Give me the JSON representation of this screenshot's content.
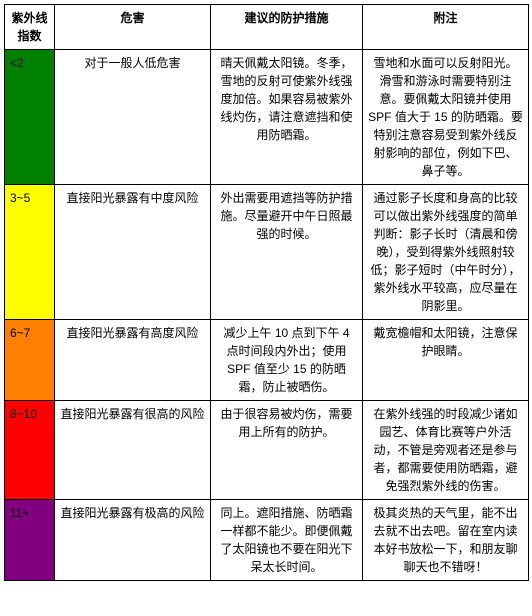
{
  "headers": {
    "uv_index": "紫外线指数",
    "hazard": "危害",
    "protection": "建议的防护措施",
    "note": "附注"
  },
  "rows": [
    {
      "index_label": "<2",
      "bg_color": "#008000",
      "hazard": "对于一般人低危害",
      "protection": "晴天佩戴太阳镜。冬季，雪地的反射可使紫外线强度加倍。如果容易被紫外线灼伤，请注意遮挡和使用防晒霜。",
      "note": "雪地和水面可以反射阳光。滑雪和游泳时需要特别注意。要佩戴太阳镜并使用 SPF 值大于 15 的防晒霜。要特别注意容易受到紫外线反射影响的部位，例如下巴、鼻子等。"
    },
    {
      "index_label": "3~5",
      "bg_color": "#ffff00",
      "hazard": "直接阳光暴露有中度风险",
      "protection": "外出需要用遮挡等防护措施。尽量避开中午日照最强的时候。",
      "note": "通过影子长度和身高的比较可以做出紫外线强度的简单判断：影子长时（清晨和傍晚），受到得紫外线照射较低；影子短时（中午时分），紫外线水平较高，应尽量在阴影里。"
    },
    {
      "index_label": "6~7",
      "bg_color": "#ff8000",
      "hazard": "直接阳光暴露有高度风险",
      "protection": "减少上午 10 点到下午 4 点时间段内外出；使用 SPF 值至少 15 的防晒霜，防止被晒伤。",
      "note": "戴宽檐帽和太阳镜，注意保护眼睛。"
    },
    {
      "index_label": "8~10",
      "bg_color": "#ff0000",
      "hazard": "直接阳光暴露有很高的风险",
      "protection": "由于很容易被灼伤，需要用上所有的防护。",
      "note": "在紫外线强的时段减少诸如园艺、体育比赛等户外活动，不管是旁观者还是参与者，都需要使用防晒霜，避免强烈紫外线的伤害。"
    },
    {
      "index_label": "11+",
      "bg_color": "#800080",
      "hazard": "直接阳光暴露有极高的风险",
      "protection": "同上。遮阳措施、防晒霜一样都不能少。即便佩戴了太阳镜也不要在阳光下呆太长时间。",
      "note": "极其炎热的天气里，能不出去就不出去吧。留在室内读本好书放松一下，和朋友聊聊天也不错呀！"
    }
  ]
}
